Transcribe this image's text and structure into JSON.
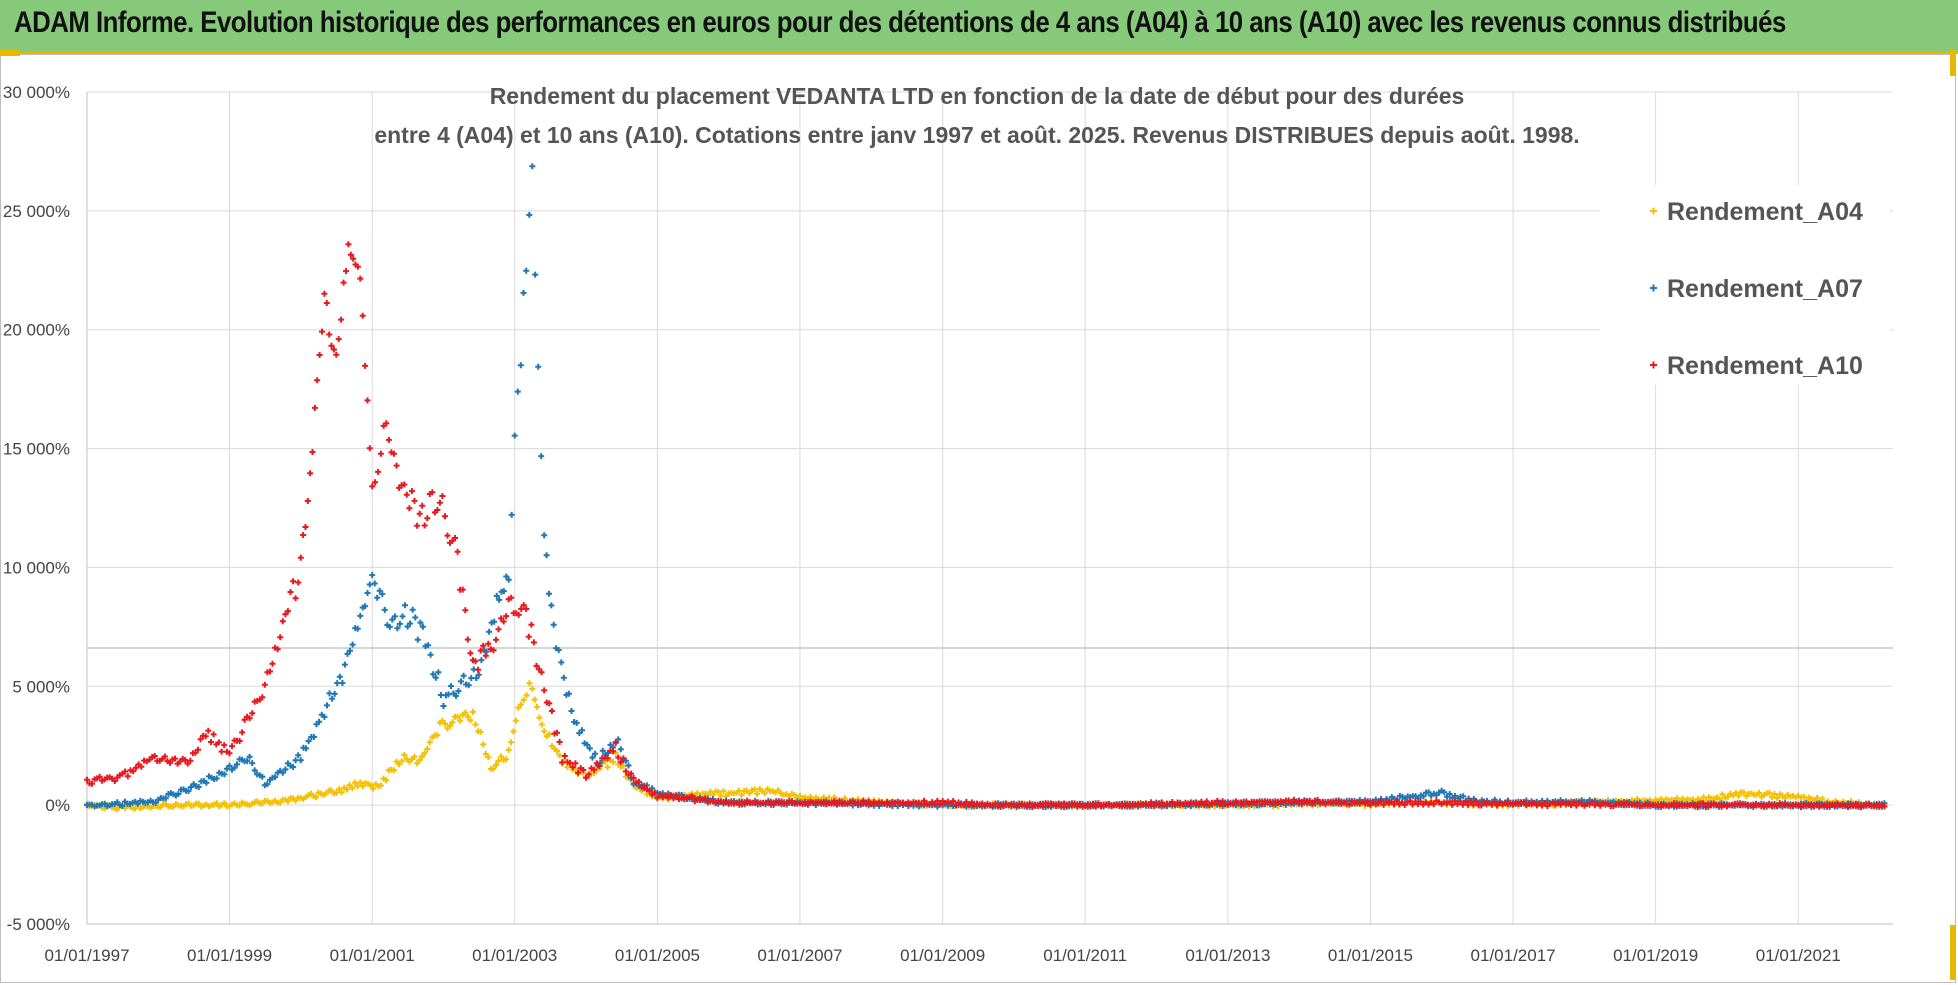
{
  "header": {
    "title": "ADAM Informe. Evolution historique des performances en euros pour des détentions de 4 ans (A04) à 10 ans (A10) avec les revenus connus distribués"
  },
  "chart_data": {
    "type": "scatter",
    "title_lines": [
      "Rendement du placement VEDANTA LTD en fonction de la date de début pour des durées",
      "entre 4 (A04) et 10 ans (A10).  Cotations entre janv 1997 et août. 2025. Revenus DISTRIBUES depuis août. 1998."
    ],
    "xlabel": "",
    "ylabel": "",
    "x_range": [
      "1997-01-01",
      "2022-05-01"
    ],
    "y_range": [
      -5000,
      30000
    ],
    "y_ticks": [
      -5000,
      0,
      5000,
      10000,
      15000,
      20000,
      25000,
      30000
    ],
    "y_tick_labels": [
      "-5 000%",
      "0%",
      "5 000%",
      "10 000%",
      "15 000%",
      "20 000%",
      "25 000%",
      "30 000%"
    ],
    "x_ticks": [
      "1997-01-01",
      "1999-01-01",
      "2001-01-01",
      "2003-01-01",
      "2005-01-01",
      "2007-01-01",
      "2009-01-01",
      "2011-01-01",
      "2013-01-01",
      "2015-01-01",
      "2017-01-01",
      "2019-01-01",
      "2021-01-01"
    ],
    "x_tick_labels": [
      "01/01/1997",
      "01/01/1999",
      "01/01/2001",
      "01/01/2003",
      "01/01/2005",
      "01/01/2007",
      "01/01/2009",
      "01/01/2011",
      "01/01/2013",
      "01/01/2015",
      "01/01/2017",
      "01/01/2019",
      "01/01/2021"
    ],
    "grid": true,
    "legend_position": "top-right",
    "marker": "+",
    "series": [
      {
        "name": "Rendement_A04",
        "color": "#f5c000",
        "points": [
          [
            "1997-01-01",
            0
          ],
          [
            "1997-07-01",
            -100
          ],
          [
            "1998-01-01",
            -50
          ],
          [
            "1998-07-01",
            0
          ],
          [
            "1999-01-01",
            0
          ],
          [
            "1999-07-01",
            100
          ],
          [
            "2000-01-01",
            300
          ],
          [
            "2000-07-01",
            600
          ],
          [
            "2000-11-01",
            900
          ],
          [
            "2001-02-01",
            800
          ],
          [
            "2001-06-01",
            2000
          ],
          [
            "2001-09-01",
            1800
          ],
          [
            "2001-12-01",
            3200
          ],
          [
            "2002-03-01",
            3600
          ],
          [
            "2002-06-01",
            3900
          ],
          [
            "2002-09-01",
            1500
          ],
          [
            "2002-12-01",
            2200
          ],
          [
            "2003-02-01",
            4200
          ],
          [
            "2003-04-01",
            5000
          ],
          [
            "2003-06-01",
            3300
          ],
          [
            "2003-09-01",
            1800
          ],
          [
            "2004-01-01",
            1200
          ],
          [
            "2004-06-01",
            2000
          ],
          [
            "2004-09-01",
            800
          ],
          [
            "2005-01-01",
            300
          ],
          [
            "2005-06-01",
            400
          ],
          [
            "2006-01-01",
            500
          ],
          [
            "2006-08-01",
            600
          ],
          [
            "2007-01-01",
            300
          ],
          [
            "2008-01-01",
            150
          ],
          [
            "2009-01-01",
            0
          ],
          [
            "2010-01-01",
            0
          ],
          [
            "2011-01-01",
            0
          ],
          [
            "2012-01-01",
            0
          ],
          [
            "2013-01-01",
            0
          ],
          [
            "2014-01-01",
            50
          ],
          [
            "2015-01-01",
            50
          ],
          [
            "2016-01-01",
            100
          ],
          [
            "2017-01-01",
            0
          ],
          [
            "2018-01-01",
            100
          ],
          [
            "2019-01-01",
            200
          ],
          [
            "2019-10-01",
            250
          ],
          [
            "2020-03-01",
            500
          ],
          [
            "2020-09-01",
            400
          ],
          [
            "2021-01-01",
            350
          ],
          [
            "2021-06-01",
            150
          ],
          [
            "2022-04-01",
            0
          ]
        ]
      },
      {
        "name": "Rendement_A07",
        "color": "#1f77b4",
        "points": [
          [
            "1997-01-01",
            0
          ],
          [
            "1997-07-01",
            50
          ],
          [
            "1998-01-01",
            200
          ],
          [
            "1998-07-01",
            800
          ],
          [
            "1999-01-01",
            1500
          ],
          [
            "1999-04-01",
            2000
          ],
          [
            "1999-07-01",
            900
          ],
          [
            "2000-01-01",
            2000
          ],
          [
            "2000-05-01",
            4000
          ],
          [
            "2000-08-01",
            5500
          ],
          [
            "2000-11-01",
            8000
          ],
          [
            "2001-01-01",
            10000
          ],
          [
            "2001-04-01",
            7500
          ],
          [
            "2001-07-01",
            8000
          ],
          [
            "2001-10-01",
            7000
          ],
          [
            "2002-01-01",
            4500
          ],
          [
            "2002-04-01",
            5000
          ],
          [
            "2002-07-01",
            5500
          ],
          [
            "2002-10-01",
            8500
          ],
          [
            "2002-12-01",
            10000
          ],
          [
            "2003-01-01",
            15000
          ],
          [
            "2003-02-01",
            19000
          ],
          [
            "2003-03-01",
            23000
          ],
          [
            "2003-04-01",
            26500
          ],
          [
            "2003-05-01",
            19000
          ],
          [
            "2003-06-01",
            11000
          ],
          [
            "2003-08-01",
            7000
          ],
          [
            "2003-11-01",
            3500
          ],
          [
            "2004-03-01",
            1800
          ],
          [
            "2004-06-01",
            2800
          ],
          [
            "2004-09-01",
            1000
          ],
          [
            "2005-01-01",
            500
          ],
          [
            "2005-06-01",
            300
          ],
          [
            "2006-01-01",
            100
          ],
          [
            "2007-01-01",
            100
          ],
          [
            "2008-01-01",
            50
          ],
          [
            "2009-01-01",
            0
          ],
          [
            "2010-01-01",
            0
          ],
          [
            "2011-01-01",
            0
          ],
          [
            "2012-01-01",
            0
          ],
          [
            "2013-01-01",
            50
          ],
          [
            "2014-01-01",
            100
          ],
          [
            "2015-01-01",
            150
          ],
          [
            "2015-06-01",
            300
          ],
          [
            "2016-01-01",
            500
          ],
          [
            "2016-06-01",
            200
          ],
          [
            "2017-01-01",
            100
          ],
          [
            "2018-01-01",
            150
          ],
          [
            "2019-01-01",
            0
          ],
          [
            "2020-01-01",
            0
          ],
          [
            "2021-01-01",
            0
          ],
          [
            "2022-04-01",
            0
          ]
        ]
      },
      {
        "name": "Rendement_A10",
        "color": "#e8191e",
        "points": [
          [
            "1997-01-01",
            1000
          ],
          [
            "1997-07-01",
            1200
          ],
          [
            "1997-12-01",
            2000
          ],
          [
            "1998-06-01",
            1800
          ],
          [
            "1998-09-01",
            3000
          ],
          [
            "1999-01-01",
            2200
          ],
          [
            "1999-04-01",
            3500
          ],
          [
            "1999-07-01",
            5000
          ],
          [
            "1999-10-01",
            7500
          ],
          [
            "2000-01-01",
            10000
          ],
          [
            "2000-03-01",
            15000
          ],
          [
            "2000-05-01",
            21000
          ],
          [
            "2000-07-01",
            19000
          ],
          [
            "2000-09-01",
            24000
          ],
          [
            "2000-11-01",
            22000
          ],
          [
            "2001-01-01",
            13000
          ],
          [
            "2001-03-01",
            16000
          ],
          [
            "2001-06-01",
            13500
          ],
          [
            "2001-09-01",
            12000
          ],
          [
            "2001-12-01",
            13000
          ],
          [
            "2002-03-01",
            11000
          ],
          [
            "2002-06-01",
            6000
          ],
          [
            "2002-09-01",
            6500
          ],
          [
            "2002-12-01",
            8500
          ],
          [
            "2003-03-01",
            8000
          ],
          [
            "2003-06-01",
            5000
          ],
          [
            "2003-09-01",
            2000
          ],
          [
            "2004-01-01",
            1300
          ],
          [
            "2004-06-01",
            2400
          ],
          [
            "2004-09-01",
            1000
          ],
          [
            "2005-01-01",
            400
          ],
          [
            "2005-06-01",
            300
          ],
          [
            "2006-01-01",
            100
          ],
          [
            "2007-01-01",
            100
          ],
          [
            "2008-01-01",
            100
          ],
          [
            "2009-01-01",
            100
          ],
          [
            "2010-01-01",
            0
          ],
          [
            "2011-01-01",
            0
          ],
          [
            "2012-01-01",
            50
          ],
          [
            "2013-01-01",
            100
          ],
          [
            "2014-01-01",
            150
          ],
          [
            "2015-01-01",
            100
          ],
          [
            "2016-01-01",
            100
          ],
          [
            "2017-01-01",
            50
          ],
          [
            "2018-01-01",
            50
          ],
          [
            "2019-01-01",
            0
          ],
          [
            "2020-01-01",
            0
          ],
          [
            "2021-01-01",
            0
          ],
          [
            "2022-04-01",
            0
          ]
        ]
      }
    ]
  }
}
